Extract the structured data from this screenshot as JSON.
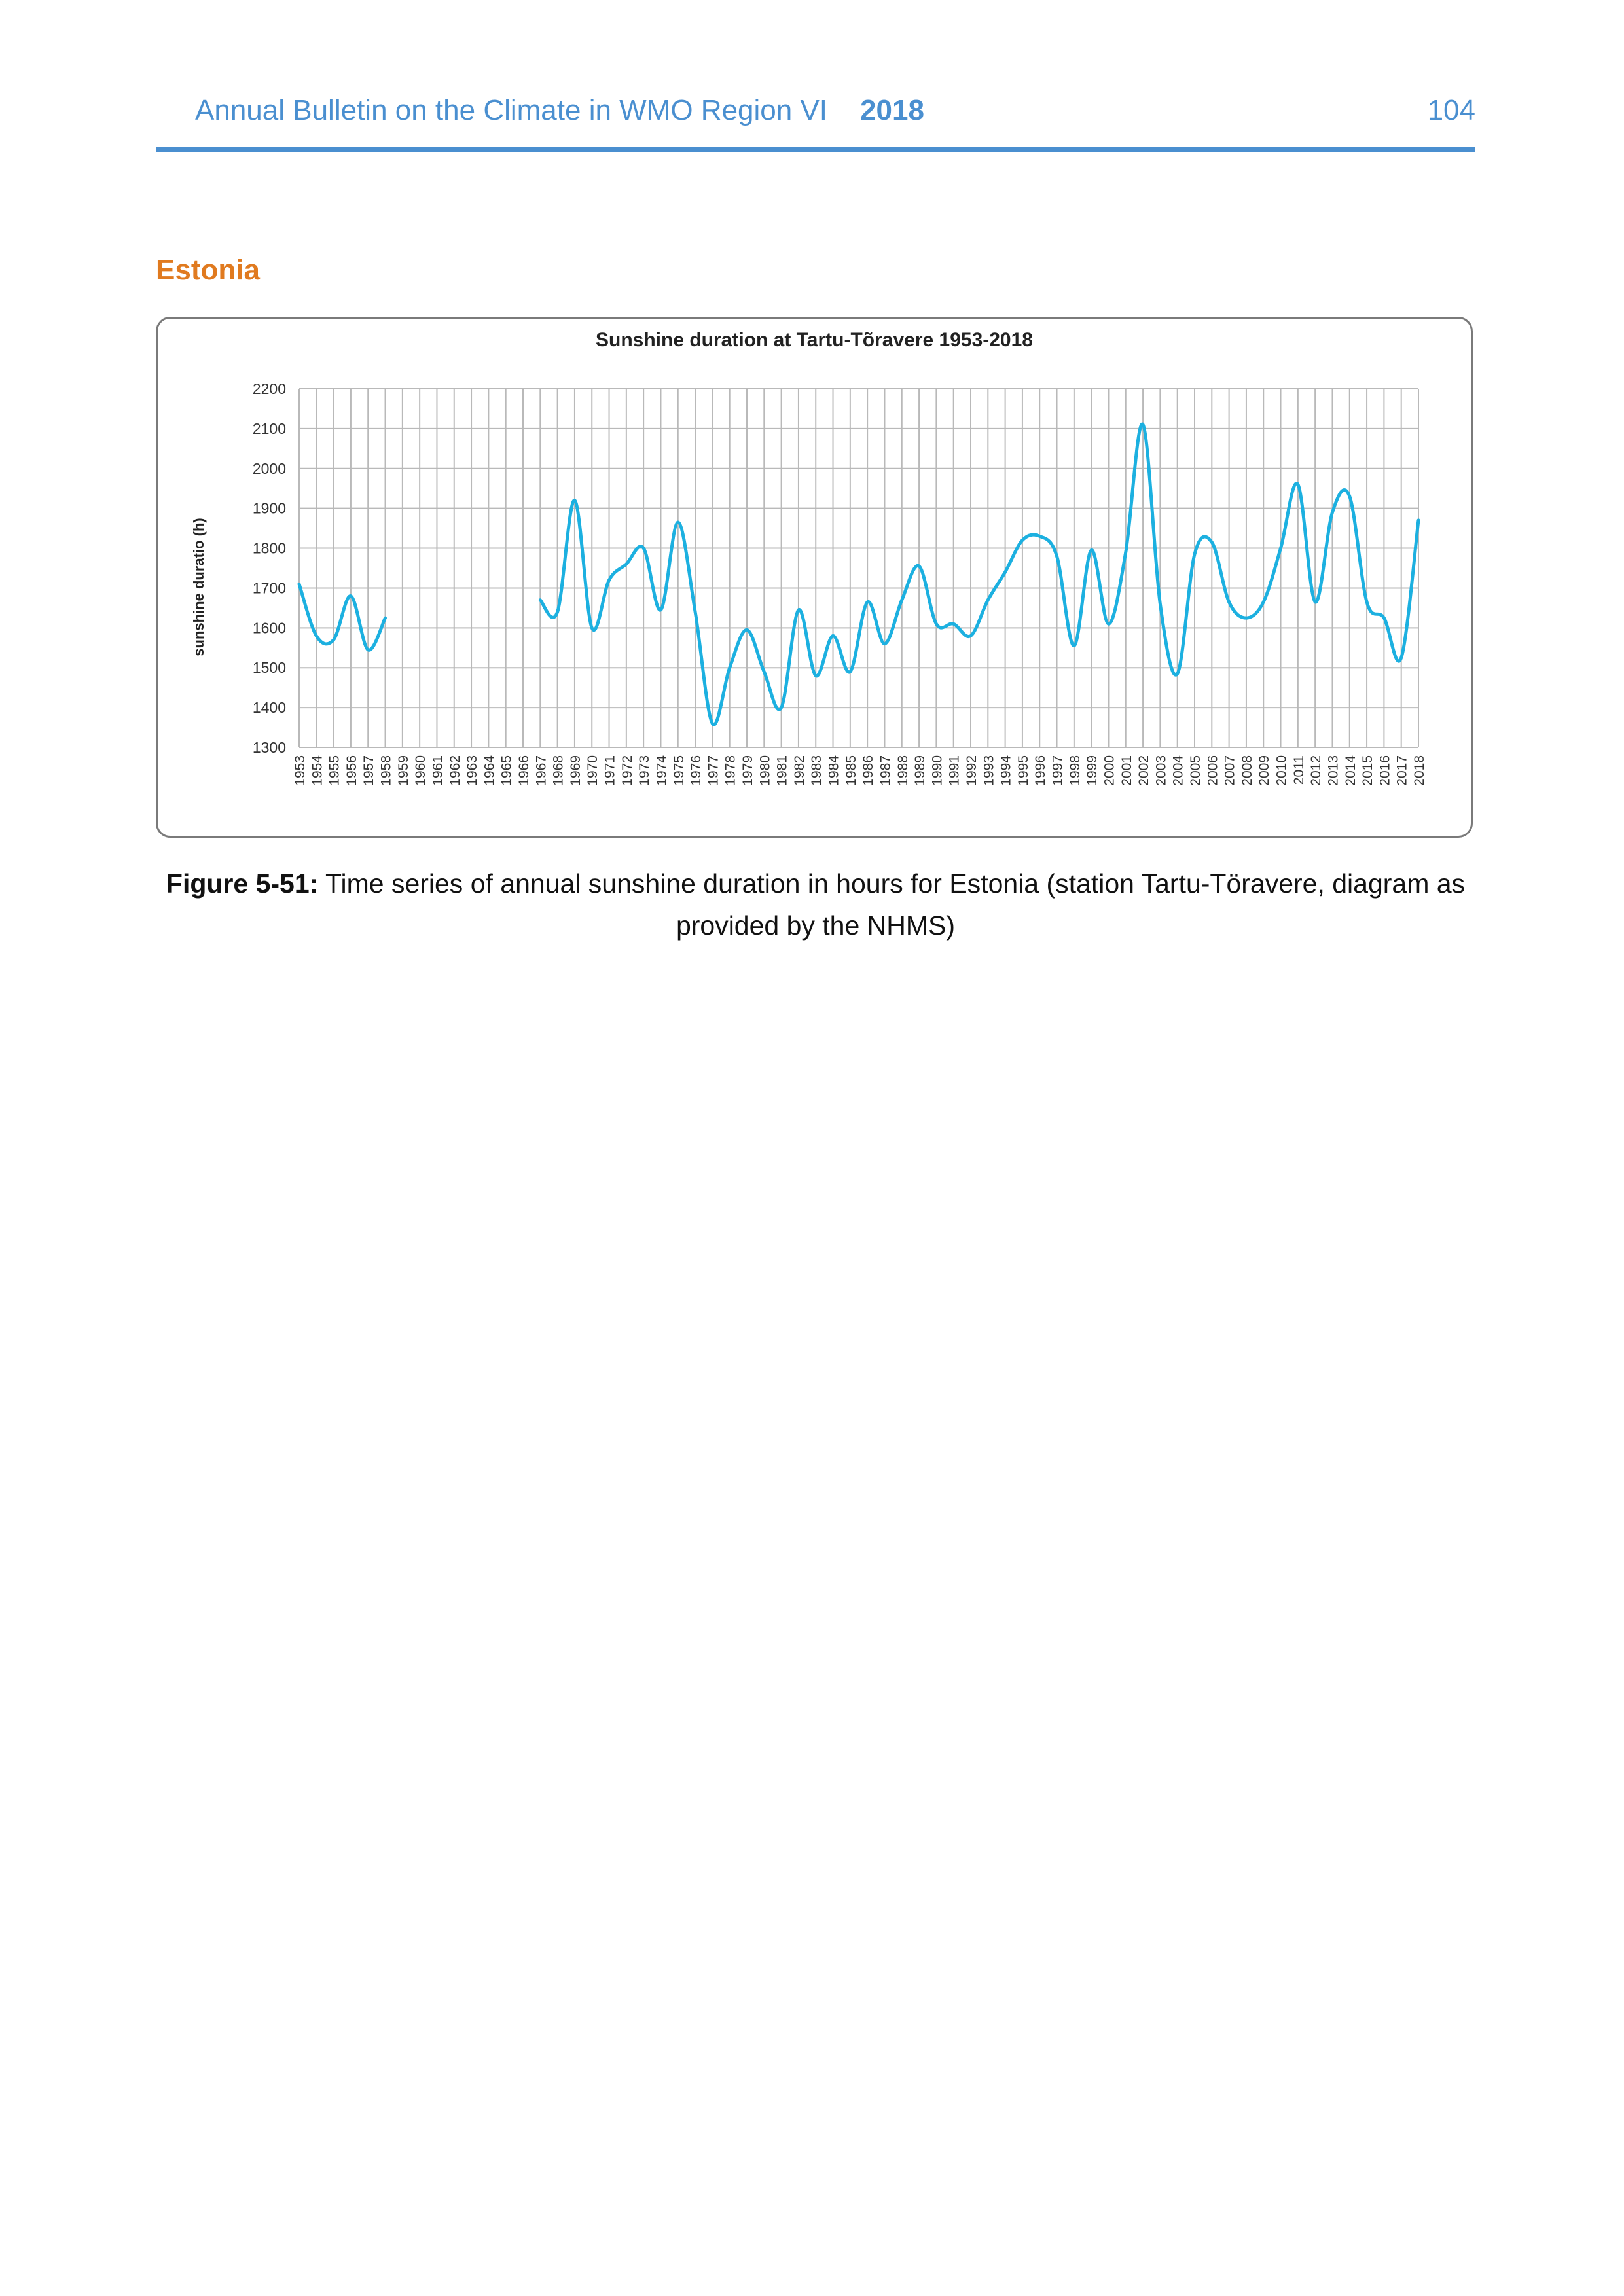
{
  "header": {
    "title": "Annual Bulletin on the Climate in WMO Region VI",
    "year": "2018",
    "page_number": "104"
  },
  "section": {
    "title": "Estonia"
  },
  "chart_data": {
    "type": "line",
    "title": "Sunshine duration at Tartu-Tõravere 1953-2018",
    "xlabel": "",
    "ylabel": "sunshine duratio (h)",
    "ylim": [
      1300,
      2200
    ],
    "yticks": [
      1300,
      1400,
      1500,
      1600,
      1700,
      1800,
      1900,
      2000,
      2100,
      2200
    ],
    "grid": true,
    "color": "#1cb0e0",
    "x": [
      1953,
      1954,
      1955,
      1956,
      1957,
      1958,
      1959,
      1960,
      1961,
      1962,
      1963,
      1964,
      1965,
      1966,
      1967,
      1968,
      1969,
      1970,
      1971,
      1972,
      1973,
      1974,
      1975,
      1976,
      1977,
      1978,
      1979,
      1980,
      1981,
      1982,
      1983,
      1984,
      1985,
      1986,
      1987,
      1988,
      1989,
      1990,
      1991,
      1992,
      1993,
      1994,
      1995,
      1996,
      1997,
      1998,
      1999,
      2000,
      2001,
      2002,
      2003,
      2004,
      2005,
      2006,
      2007,
      2008,
      2009,
      2010,
      2011,
      2012,
      2013,
      2014,
      2015,
      2016,
      2017,
      2018
    ],
    "series": [
      {
        "values": [
          1710,
          1580,
          1570,
          1680,
          1545,
          1625,
          null,
          null,
          null,
          null,
          null,
          null,
          null,
          null,
          1670,
          1640,
          1920,
          1600,
          1720,
          1760,
          1800,
          1645,
          1865,
          1640,
          1360,
          1500,
          1595,
          1490,
          1400,
          1645,
          1480,
          1580,
          1490,
          1665,
          1560,
          1670,
          1755,
          1610,
          1610,
          1580,
          1670,
          1740,
          1820,
          1830,
          1780,
          1555,
          1795,
          1610,
          1790,
          2110,
          1660,
          1485,
          1785,
          1815,
          1665,
          1625,
          1665,
          1800,
          1960,
          1665,
          1890,
          1930,
          1665,
          1625,
          1525,
          1870
        ]
      }
    ]
  },
  "caption": {
    "label": "Figure 5-51:",
    "text": " Time series of annual sunshine duration in hours for Estonia (station Tartu-Töravere, diagram as provided by the NHMS)"
  }
}
